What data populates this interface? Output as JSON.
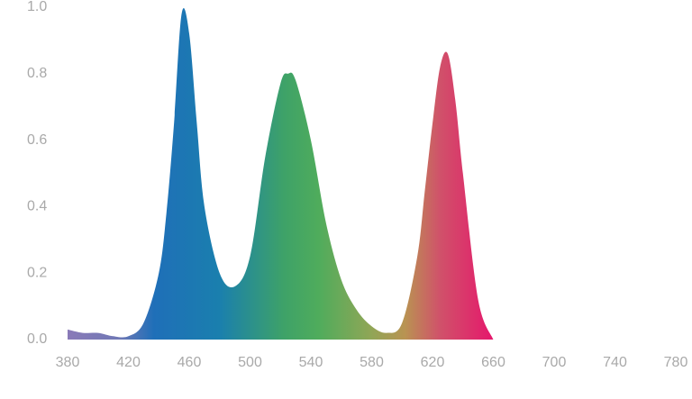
{
  "chart_data": {
    "type": "area",
    "x": [
      380,
      390,
      400,
      410,
      420,
      430,
      440,
      445,
      450,
      455,
      460,
      465,
      470,
      480,
      490,
      500,
      510,
      520,
      525,
      530,
      540,
      550,
      560,
      570,
      580,
      590,
      600,
      610,
      615,
      620,
      625,
      630,
      635,
      640,
      650,
      660
    ],
    "values": [
      0.03,
      0.02,
      0.02,
      0.01,
      0.01,
      0.05,
      0.2,
      0.38,
      0.65,
      0.98,
      0.92,
      0.65,
      0.4,
      0.2,
      0.16,
      0.25,
      0.55,
      0.77,
      0.8,
      0.78,
      0.6,
      0.35,
      0.18,
      0.09,
      0.04,
      0.02,
      0.05,
      0.25,
      0.45,
      0.65,
      0.82,
      0.86,
      0.72,
      0.5,
      0.12,
      0.0
    ],
    "xlim": [
      380,
      780
    ],
    "xticks": [
      380,
      420,
      460,
      500,
      540,
      580,
      620,
      660,
      700,
      740,
      780
    ],
    "ylim": [
      0,
      1
    ],
    "yticks": [
      {
        "value": 0,
        "label": "0.0"
      },
      0.2,
      0.4,
      0.6,
      0.8,
      {
        "value": 1,
        "label": "1.0"
      }
    ]
  }
}
